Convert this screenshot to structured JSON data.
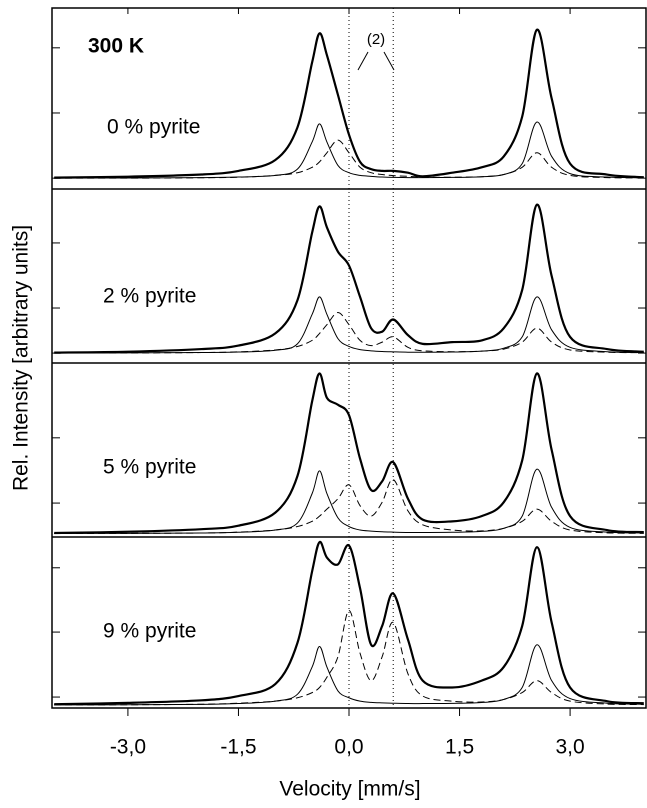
{
  "chart_data": {
    "type": "line",
    "xlabel": "Velocity [mm/s]",
    "ylabel": "Rel. Intensity [arbitrary units]",
    "temperature_label": "300 K",
    "annotation": "(2)",
    "reference_lines": [
      0,
      0.6
    ],
    "xlim": [
      -4.03,
      4.03
    ],
    "xticks": [
      {
        "value": -3,
        "label": "-3,0"
      },
      {
        "value": -1.5,
        "label": "-1,5"
      },
      {
        "value": 0,
        "label": "0,0"
      },
      {
        "value": 1.5,
        "label": "1,5"
      },
      {
        "value": 3,
        "label": "3,0"
      }
    ],
    "color": "#000000",
    "x": [
      -4,
      -3,
      -2,
      -1.5,
      -1,
      -0.7,
      -0.5,
      -0.4,
      -0.3,
      -0.15,
      0,
      0.15,
      0.3,
      0.45,
      0.6,
      0.8,
      1,
      1.4,
      1.8,
      2.1,
      2.35,
      2.55,
      2.75,
      3,
      3.5,
      4
    ],
    "panels": [
      {
        "label": "0 % pyrite",
        "ylim": [
          0,
          100
        ],
        "yticks": [
          6,
          42,
          78
        ],
        "series": [
          {
            "line_style": "thick",
            "values": [
              6.3,
              6.8,
              8,
              10,
              16,
              34,
              70,
              86,
              74,
              52,
              30,
              15,
              11,
              10,
              10,
              9,
              7,
              9,
              12,
              18,
              40,
              88,
              50,
              14,
              8,
              6.5
            ]
          },
          {
            "line_style": "thin",
            "values": [
              6,
              6.1,
              6.3,
              6.6,
              7.5,
              11,
              26,
              36,
              26,
              13,
              9,
              7.5,
              7,
              6.6,
              6.4,
              6.3,
              6.3,
              6.4,
              6.8,
              8,
              14,
              37,
              18,
              8.5,
              6.6,
              6.2
            ]
          },
          {
            "line_style": "dashed",
            "values": [
              6,
              6,
              6.2,
              6.5,
              7.5,
              9,
              12,
              15,
              20,
              27,
              20,
              12,
              9,
              8,
              7.4,
              7,
              6.6,
              6.5,
              6.8,
              8,
              12,
              20,
              12,
              7.5,
              6.3,
              6.1
            ]
          }
        ]
      },
      {
        "label": "2 % pyrite",
        "ylim": [
          0,
          100
        ],
        "yticks": [
          5.7,
          31.6,
          69
        ],
        "series": [
          {
            "line_style": "thick",
            "values": [
              6,
              6.5,
              8,
              10,
              17,
              36,
              75,
              90,
              78,
              64,
              56,
              38,
              20,
              18,
              25,
              16,
              11,
              12,
              13,
              20,
              42,
              91,
              50,
              15,
              8,
              6.5
            ]
          },
          {
            "line_style": "thin",
            "values": [
              5.7,
              5.8,
              6,
              6.3,
              7.3,
              11,
              28,
              38,
              28,
              14,
              9.5,
              7.7,
              7,
              6.6,
              6.4,
              6.2,
              6.2,
              6.3,
              6.8,
              8.5,
              15,
              38,
              19,
              9,
              6.5,
              6
            ]
          },
          {
            "line_style": "dashed",
            "values": [
              5.7,
              5.8,
              6,
              6.4,
              7.5,
              9.5,
              13,
              17,
              22,
              29,
              22,
              13,
              10,
              12,
              15,
              9,
              7,
              6.5,
              6.8,
              8,
              12,
              20,
              12,
              7.5,
              6.2,
              5.9
            ]
          }
        ]
      },
      {
        "label": "5 % pyrite",
        "ylim": [
          0,
          100
        ],
        "yticks": [
          19.5,
          57
        ],
        "series": [
          {
            "line_style": "thick",
            "values": [
              2.3,
              3,
              4.5,
              6.5,
              14,
              35,
              78,
              94,
              80,
              76,
              70,
              45,
              27,
              32,
              43,
              22,
              10,
              9,
              12,
              20,
              44,
              94,
              50,
              12,
              4,
              2.8
            ]
          },
          {
            "line_style": "thin",
            "values": [
              2,
              2.1,
              2.3,
              2.7,
              4,
              8,
              25,
              38,
              25,
              11,
              6,
              4,
              3.4,
              3,
              2.8,
              2.6,
              2.6,
              2.7,
              3.2,
              5,
              12,
              39,
              17,
              5.5,
              2.8,
              2.3
            ]
          },
          {
            "line_style": "dashed",
            "values": [
              2,
              2.1,
              2.3,
              2.8,
              4,
              6,
              9,
              12,
              16,
              22,
              30,
              18,
              12,
              20,
              33,
              15,
              7,
              4,
              3.5,
              5,
              9,
              16,
              9,
              4,
              2.4,
              2.1
            ]
          }
        ]
      },
      {
        "label": "9 % pyrite",
        "ylim": [
          0,
          100
        ],
        "yticks": [
          6.4,
          44.4,
          82
        ],
        "series": [
          {
            "line_style": "thick",
            "values": [
              2.2,
              3,
              4.5,
              7,
              14,
              38,
              80,
              97,
              88,
              84,
              95,
              70,
              37,
              48,
              67,
              40,
              16,
              12,
              16,
              24,
              48,
              94,
              50,
              12,
              4,
              2.8
            ]
          },
          {
            "line_style": "thin",
            "values": [
              1.8,
              1.9,
              2.1,
              2.6,
              4,
              8,
              24,
              36,
              24,
              10,
              6,
              4,
              3.3,
              3,
              2.8,
              2.6,
              2.6,
              2.7,
              3.2,
              5,
              12,
              37,
              16,
              5.5,
              2.8,
              2.2
            ]
          },
          {
            "line_style": "dashed",
            "values": [
              1.8,
              1.9,
              2.2,
              2.8,
              4,
              6,
              9,
              12,
              18,
              30,
              57,
              32,
              16,
              30,
              50,
              20,
              7,
              4,
              3.5,
              5,
              9,
              16,
              9,
              4,
              2.3,
              2
            ]
          }
        ]
      }
    ]
  }
}
